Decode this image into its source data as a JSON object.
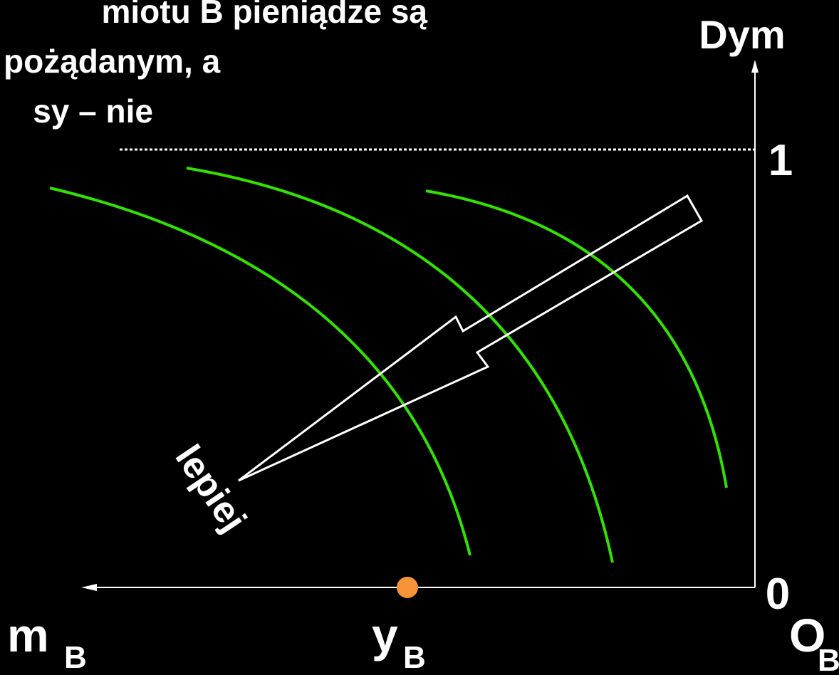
{
  "header": {
    "lines": [
      "miotu B pieniądze są",
      "pożądanym, a",
      "sy – nie"
    ]
  },
  "axes": {
    "y_label": "Dym",
    "y_top": "1",
    "y_bottom": "0",
    "x_left": {
      "main": "m",
      "sub": "B"
    },
    "x_mid": {
      "main": "y",
      "sub": "B"
    },
    "origin": {
      "main": "O",
      "sub": "B"
    }
  },
  "arrow_label": "lepiej"
}
